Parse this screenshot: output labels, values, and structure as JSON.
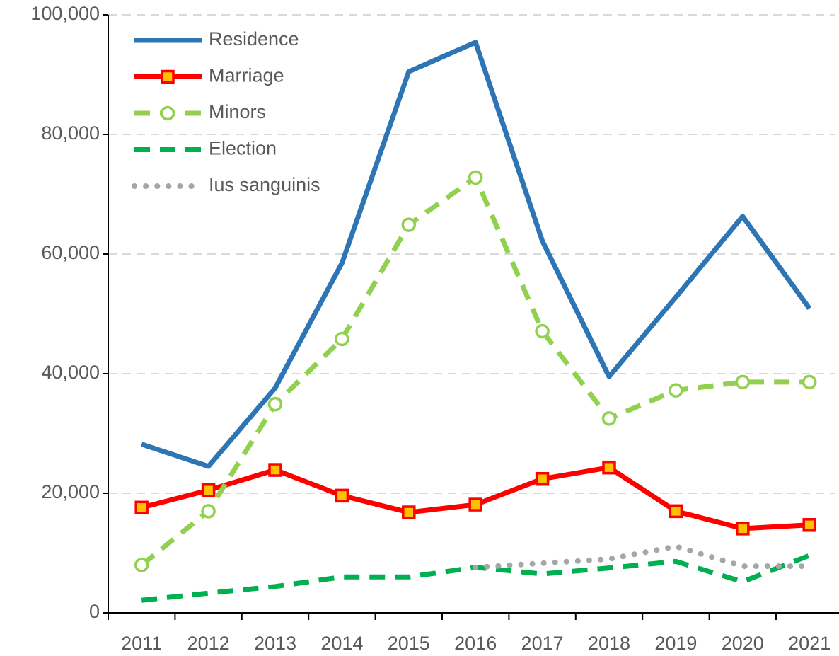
{
  "chart_data": {
    "type": "line",
    "categories": [
      "2011",
      "2012",
      "2013",
      "2014",
      "2015",
      "2016",
      "2017",
      "2018",
      "2019",
      "2020",
      "2021"
    ],
    "series": [
      {
        "name": "Residence",
        "color": "#2e75b6",
        "dash": "solid",
        "marker": "none",
        "values": [
          28200,
          24500,
          37600,
          58500,
          90500,
          95400,
          62200,
          39500,
          52800,
          66300,
          50900
        ]
      },
      {
        "name": "Marriage",
        "color": "#ff0000",
        "dash": "solid",
        "marker": "square",
        "marker_fill": "#ffc000",
        "values": [
          17600,
          20500,
          23900,
          19600,
          16800,
          18100,
          22400,
          24300,
          17000,
          14100,
          14700
        ]
      },
      {
        "name": "Minors",
        "color": "#92d050",
        "dash": "dash",
        "marker": "circle",
        "marker_fill": "#ffffff",
        "values": [
          8000,
          17000,
          34900,
          45800,
          64900,
          72800,
          47100,
          32500,
          37200,
          38600,
          38600
        ]
      },
      {
        "name": "Election",
        "color": "#00b050",
        "dash": "dash",
        "marker": "none",
        "values": [
          2100,
          3300,
          4400,
          6000,
          6000,
          7600,
          6500,
          7500,
          8600,
          5200,
          9600
        ]
      },
      {
        "name": "Ius sanguinis",
        "color": "#a6a6a6",
        "dash": "dot",
        "marker": "none",
        "values": [
          null,
          null,
          null,
          null,
          null,
          7600,
          8300,
          9000,
          11100,
          7800,
          7800
        ]
      }
    ],
    "ylim": [
      0,
      100000
    ],
    "yticks": [
      0,
      {
        "value": 20000,
        "label": "20,000"
      },
      {
        "value": 40000,
        "label": "40,000"
      },
      {
        "value": 60000,
        "label": "60,000"
      },
      {
        "value": 80000,
        "label": "80,000"
      },
      {
        "value": 100000,
        "label": "100,000"
      }
    ],
    "grid": true,
    "legend": "top-left"
  }
}
